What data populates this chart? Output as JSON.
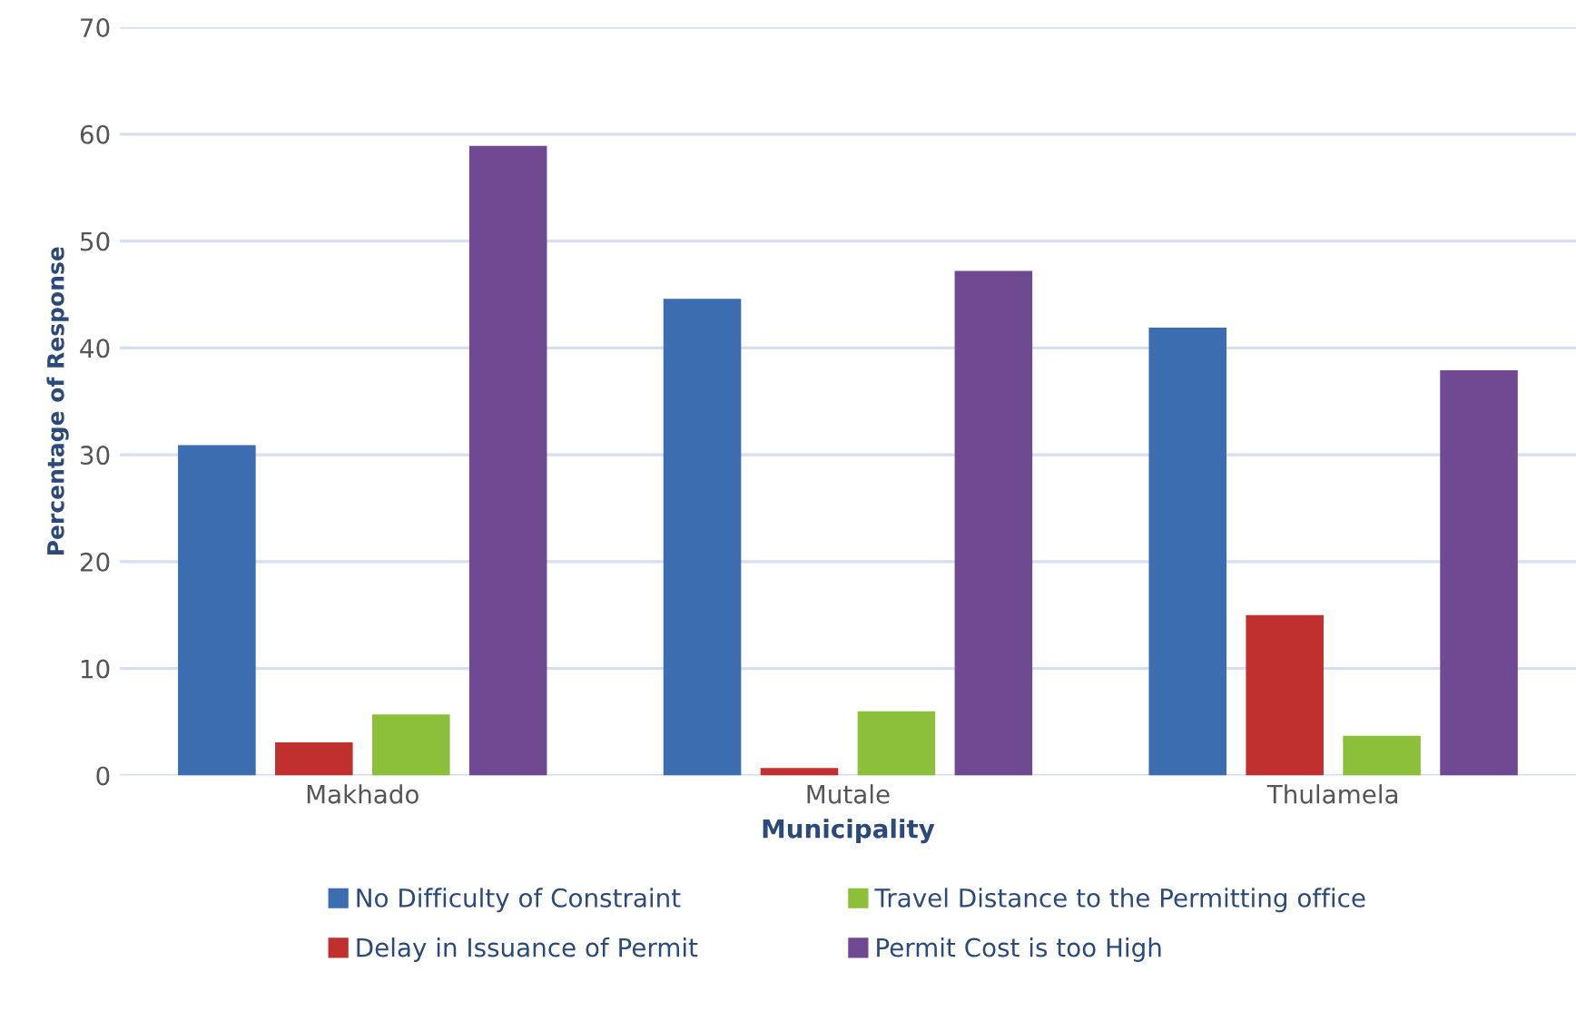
{
  "chart_data": {
    "type": "bar",
    "xlabel": "Municipality",
    "ylabel": "Percentage of Response",
    "categories": [
      "Makhado",
      "Mutale",
      "Thulamela"
    ],
    "series": [
      {
        "name": "No Difficulty of Constraint",
        "color": "#3b6db0",
        "values": [
          30.9,
          44.6,
          41.9
        ]
      },
      {
        "name": "Delay in Issuance of Permit",
        "color": "#c0302e",
        "values": [
          3.1,
          0.7,
          15.0
        ]
      },
      {
        "name": "Travel Distance to the Permitting office",
        "color": "#8cbf3a",
        "values": [
          5.7,
          6.0,
          3.7
        ]
      },
      {
        "name": "Permit Cost is too High",
        "color": "#6f4a93",
        "values": [
          58.9,
          47.2,
          37.9
        ]
      }
    ],
    "ylim": [
      0,
      70
    ],
    "yticks": [
      0,
      10,
      20,
      30,
      40,
      50,
      60,
      70
    ],
    "grid": "y",
    "legend": "bottom"
  }
}
